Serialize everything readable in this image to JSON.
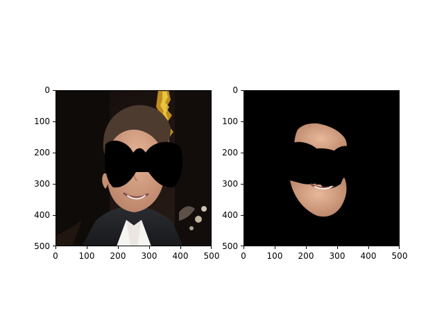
{
  "figure": {
    "panels": [
      {
        "id": "left",
        "description_label": "",
        "x_ticks": [
          "0",
          "100",
          "200",
          "300",
          "400",
          "500"
        ],
        "y_ticks": [
          "0",
          "100",
          "200",
          "300",
          "400",
          "500"
        ]
      },
      {
        "id": "right",
        "description_label": "",
        "x_ticks": [
          "0",
          "100",
          "200",
          "300",
          "400",
          "500"
        ],
        "y_ticks": [
          "0",
          "100",
          "200",
          "300",
          "400",
          "500"
        ]
      }
    ]
  },
  "colors": {
    "background": "#ffffff",
    "mask_black": "#000000",
    "face_skin": "#d7a88b",
    "hair": "#4e3b2f",
    "shirt": "#f4f4f4",
    "jacket": "#26262b",
    "backdrop": "#1b1410"
  }
}
